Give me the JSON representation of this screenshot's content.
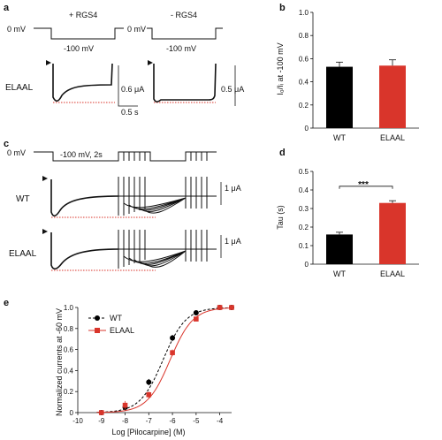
{
  "panels": {
    "a": {
      "letter": "a",
      "plus_label": "+ RGS4",
      "minus_label": "- RGS4",
      "zero_mv_left": "0 mV",
      "zero_mv_right": "0 mV",
      "hold_left": "-100 mV",
      "hold_right": "-100 mV",
      "row_label": "ELAAL",
      "scale_current_left": "0.6 μA",
      "scale_time": "0.5 s",
      "scale_current_right": "0.5 μA"
    },
    "c": {
      "letter": "c",
      "zero_mv": "0 mV",
      "protocol": "-100 mV, 2s",
      "row_wt": "WT",
      "row_elaal": "ELAAL",
      "scale_wt": "1 μA",
      "scale_elaal": "1 μA"
    },
    "b": {
      "letter": "b"
    },
    "d": {
      "letter": "d",
      "significance": "***"
    },
    "e": {
      "letter": "e"
    }
  },
  "chart_data": [
    {
      "id": "b",
      "type": "bar",
      "categories": [
        "WT",
        "ELAAL"
      ],
      "values": [
        0.53,
        0.54
      ],
      "errors": [
        0.04,
        0.05
      ],
      "colors": [
        "#000000",
        "#d9352b"
      ],
      "ylabel": "I₀/Iᵢ at -100 mV",
      "ylim": [
        0,
        1.0
      ],
      "yticks": [
        "0",
        "0.2",
        "0.4",
        "0.6",
        "0.8",
        "1.0"
      ]
    },
    {
      "id": "d",
      "type": "bar",
      "categories": [
        "WT",
        "ELAAL"
      ],
      "values": [
        0.16,
        0.33
      ],
      "errors": [
        0.012,
        0.012
      ],
      "colors": [
        "#000000",
        "#d9352b"
      ],
      "ylabel": "Tau (s)",
      "ylim": [
        0,
        0.5
      ],
      "yticks": [
        "0",
        "0.1",
        "0.2",
        "0.3",
        "0.4",
        "0.5"
      ],
      "annotation": "***"
    },
    {
      "id": "e",
      "type": "line",
      "xlabel": "Log [Pilocarpine] (M)",
      "ylabel": "Normalized currents at -60 mV",
      "xlim": [
        -10,
        -3.5
      ],
      "ylim": [
        0,
        1.0
      ],
      "xticks": [
        "-10",
        "-9",
        "-8",
        "-7",
        "-6",
        "-5",
        "-4"
      ],
      "yticks": [
        "0",
        "0.2",
        "0.4",
        "0.6",
        "0.8",
        "1.0"
      ],
      "series": [
        {
          "name": "WT",
          "color": "#000000",
          "x": [
            -9,
            -8,
            -7,
            -6,
            -5,
            -4,
            -3.5
          ],
          "y": [
            0.0,
            0.05,
            0.29,
            0.71,
            0.95,
            1.0,
            1.0
          ],
          "err": [
            0.0,
            0.03,
            0.03,
            0.03,
            0.02,
            0.0,
            0.0
          ],
          "ec50": -6.4,
          "hill": 0.9
        },
        {
          "name": "ELAAL",
          "color": "#d9352b",
          "x": [
            -9,
            -8,
            -7,
            -6,
            -5,
            -4,
            -3.5
          ],
          "y": [
            0.0,
            0.07,
            0.17,
            0.57,
            0.89,
            1.0,
            1.0
          ],
          "err": [
            0.0,
            0.04,
            0.03,
            0.03,
            0.02,
            0.0,
            0.0
          ],
          "ec50": -6.1,
          "hill": 0.9
        }
      ]
    }
  ]
}
